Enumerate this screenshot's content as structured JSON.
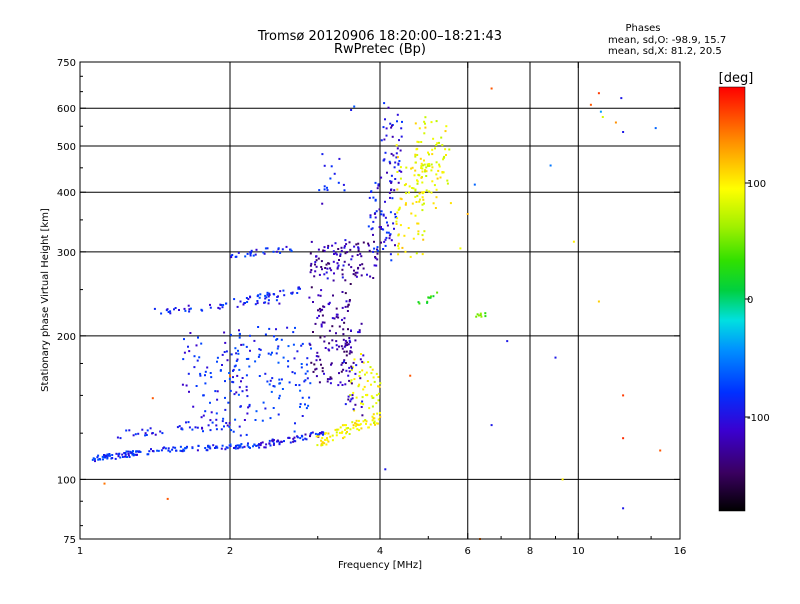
{
  "chart_data": {
    "type": "scatter",
    "title": "Tromsø 20120906 18:20:00–18:21:43",
    "subtitle": "RwPretec (Bp)",
    "stats": {
      "heading": "Phases",
      "line_o": "mean, sd,O:  -98.9, 15.7",
      "line_x": "mean, sd,X:  81.2, 20.5"
    },
    "xlabel": "Frequency [MHz]",
    "ylabel": "Stationary phase Virtual Height [km]",
    "x_scale": "log",
    "y_scale": "log",
    "xlim": [
      1,
      16
    ],
    "ylim": [
      75,
      750
    ],
    "x_ticks": [
      "1",
      "2",
      "4",
      "6",
      "8",
      "10",
      "16"
    ],
    "y_ticks": [
      "75",
      "100",
      "200",
      "300",
      "400",
      "500",
      "600",
      "750"
    ],
    "grid_x": [
      2,
      4,
      6,
      8,
      10
    ],
    "grid_y": [
      100,
      200,
      300,
      400,
      500,
      600
    ],
    "colorbar": {
      "label": "[deg]",
      "range": [
        -180,
        180
      ],
      "ticks": [
        "100",
        "0",
        "-100"
      ]
    },
    "traces": [
      {
        "f": [
          1.05,
          1.4
        ],
        "h": [
          110,
          115
        ],
        "phase": -100,
        "n": 70,
        "jitter": 0.015
      },
      {
        "f": [
          1.4,
          2.3
        ],
        "h": [
          115,
          118
        ],
        "phase": -100,
        "n": 80,
        "jitter": 0.012
      },
      {
        "f": [
          2.3,
          3.1
        ],
        "h": [
          118,
          125
        ],
        "phase": -110,
        "n": 60,
        "jitter": 0.015
      },
      {
        "f": [
          3.0,
          4.0
        ],
        "h": [
          120,
          135
        ],
        "phase": 95,
        "n": 80,
        "jitter": 0.03
      },
      {
        "f": [
          3.5,
          4.0
        ],
        "h": [
          135,
          175
        ],
        "phase": 90,
        "n": 50,
        "jitter": 0.05
      },
      {
        "f": [
          1.2,
          2.0
        ],
        "h": [
          124,
          130
        ],
        "phase": -105,
        "n": 40,
        "jitter": 0.02
      },
      {
        "f": [
          1.6,
          2.2
        ],
        "h": [
          130,
          200
        ],
        "phase": -105,
        "n": 90,
        "jitter": 0.07
      },
      {
        "f": [
          2.0,
          2.9
        ],
        "h": [
          135,
          200
        ],
        "phase": -95,
        "n": 110,
        "jitter": 0.08
      },
      {
        "f": [
          2.9,
          3.5
        ],
        "h": [
          160,
          250
        ],
        "phase": -135,
        "n": 120,
        "jitter": 0.07
      },
      {
        "f": [
          3.4,
          3.7
        ],
        "h": [
          140,
          210
        ],
        "phase": -125,
        "n": 40,
        "jitter": 0.05
      },
      {
        "f": [
          1.4,
          2.5
        ],
        "h": [
          225,
          235
        ],
        "phase": -105,
        "n": 40,
        "jitter": 0.015
      },
      {
        "f": [
          2.0,
          2.8
        ],
        "h": [
          235,
          250
        ],
        "phase": -100,
        "n": 35,
        "jitter": 0.015
      },
      {
        "f": [
          2.0,
          2.7
        ],
        "h": [
          295,
          305
        ],
        "phase": -100,
        "n": 30,
        "jitter": 0.015
      },
      {
        "f": [
          2.9,
          4.0
        ],
        "h": [
          270,
          310
        ],
        "phase": -130,
        "n": 110,
        "jitter": 0.04
      },
      {
        "f": [
          3.8,
          4.3
        ],
        "h": [
          300,
          440
        ],
        "phase": -110,
        "n": 70,
        "jitter": 0.05
      },
      {
        "f": [
          4.0,
          4.4
        ],
        "h": [
          430,
          600
        ],
        "phase": -110,
        "n": 40,
        "jitter": 0.06
      },
      {
        "f": [
          4.3,
          4.9
        ],
        "h": [
          300,
          480
        ],
        "phase": 95,
        "n": 70,
        "jitter": 0.06
      },
      {
        "f": [
          4.7,
          5.5
        ],
        "h": [
          380,
          560
        ],
        "phase": 90,
        "n": 90,
        "jitter": 0.06
      },
      {
        "f": [
          3.0,
          3.4
        ],
        "h": [
          380,
          470
        ],
        "phase": -110,
        "n": 15,
        "jitter": 0.04
      },
      {
        "f": [
          4.8,
          5.2
        ],
        "h": [
          230,
          245
        ],
        "phase": 30,
        "n": 10,
        "jitter": 0.03
      },
      {
        "f": [
          6.2,
          6.6
        ],
        "h": [
          218,
          225
        ],
        "phase": 40,
        "n": 8,
        "jitter": 0.02
      }
    ],
    "stray_points": [
      {
        "f": 1.12,
        "h": 98,
        "phase": 140
      },
      {
        "f": 1.5,
        "h": 91,
        "phase": 150
      },
      {
        "f": 1.4,
        "h": 148,
        "phase": 150
      },
      {
        "f": 2.0,
        "h": 165,
        "phase": 140
      },
      {
        "f": 2.5,
        "h": 190,
        "phase": -110
      },
      {
        "f": 3.5,
        "h": 595,
        "phase": -110
      },
      {
        "f": 3.55,
        "h": 605,
        "phase": -80
      },
      {
        "f": 4.1,
        "h": 105,
        "phase": -110
      },
      {
        "f": 4.6,
        "h": 165,
        "phase": 150
      },
      {
        "f": 5.8,
        "h": 305,
        "phase": 90
      },
      {
        "f": 6.0,
        "h": 360,
        "phase": 120
      },
      {
        "f": 6.2,
        "h": 415,
        "phase": -70
      },
      {
        "f": 6.35,
        "h": 75,
        "phase": 140
      },
      {
        "f": 6.7,
        "h": 660,
        "phase": 150
      },
      {
        "f": 7.2,
        "h": 195,
        "phase": -110
      },
      {
        "f": 6.7,
        "h": 130,
        "phase": -110
      },
      {
        "f": 8.8,
        "h": 455,
        "phase": -60
      },
      {
        "f": 9.0,
        "h": 180,
        "phase": -110
      },
      {
        "f": 9.3,
        "h": 100,
        "phase": 100
      },
      {
        "f": 9.8,
        "h": 315,
        "phase": 100
      },
      {
        "f": 10.6,
        "h": 610,
        "phase": 150
      },
      {
        "f": 11.0,
        "h": 645,
        "phase": 160
      },
      {
        "f": 11.1,
        "h": 590,
        "phase": -40
      },
      {
        "f": 11.0,
        "h": 236,
        "phase": 110
      },
      {
        "f": 11.2,
        "h": 575,
        "phase": 80
      },
      {
        "f": 12.2,
        "h": 630,
        "phase": -110
      },
      {
        "f": 12.3,
        "h": 535,
        "phase": -110
      },
      {
        "f": 12.3,
        "h": 150,
        "phase": 160
      },
      {
        "f": 12.3,
        "h": 122,
        "phase": 165
      },
      {
        "f": 12.3,
        "h": 87,
        "phase": -110
      },
      {
        "f": 14.3,
        "h": 545,
        "phase": -70
      },
      {
        "f": 14.6,
        "h": 115,
        "phase": 150
      },
      {
        "f": 11.9,
        "h": 560,
        "phase": 130
      }
    ]
  }
}
